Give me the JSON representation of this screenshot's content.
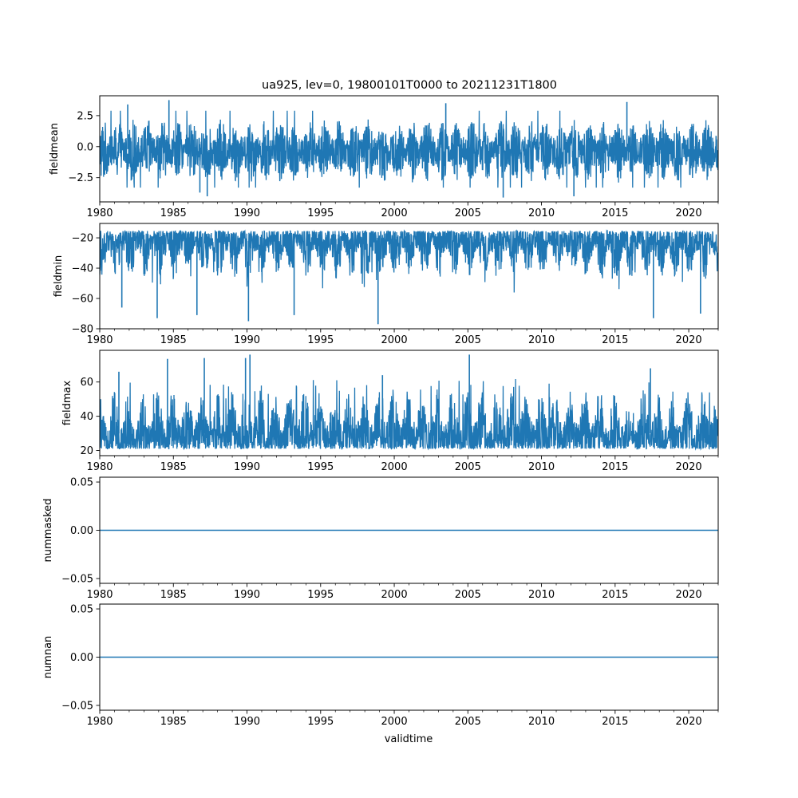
{
  "figure": {
    "title": "ua925, lev=0, 19800101T0000 to 20211231T1800",
    "xlabel": "validtime",
    "line_color": "#1f77b4"
  },
  "chart_data": [
    {
      "type": "line",
      "ylabel": "fieldmean",
      "xlim": [
        1980.0,
        2022.0
      ],
      "ylim": [
        -4.45,
        4.1
      ],
      "yticks": [
        -2.5,
        0.0,
        2.5
      ],
      "ytick_labels": [
        "−2.5",
        "0.0",
        "2.5"
      ],
      "xticks": [
        1980,
        1985,
        1990,
        1995,
        2000,
        2005,
        2010,
        2015,
        2020
      ],
      "xtick_labels": [
        "1980",
        "1985",
        "1990",
        "1995",
        "2000",
        "2005",
        "2010",
        "2015",
        "2020"
      ],
      "grid": false,
      "series": [
        {
          "x_range": [
            1980.0,
            2021.99
          ],
          "baseline": -0.2,
          "typical_low": -2.2,
          "typical_high": 1.5,
          "extremes": [
            [
              1984.7,
              3.75
            ],
            [
              1987.3,
              -4.0
            ],
            [
              2003.5,
              3.5
            ],
            [
              2007.4,
              -4.1
            ],
            [
              2012.2,
              -4.0
            ],
            [
              2015.8,
              3.6
            ],
            [
              1981.9,
              3.4
            ],
            [
              1986.8,
              -3.7
            ]
          ]
        }
      ]
    },
    {
      "type": "line",
      "ylabel": "fieldmin",
      "xlim": [
        1980.0,
        2022.0
      ],
      "ylim": [
        -80.0,
        -10.5
      ],
      "yticks": [
        -80,
        -60,
        -40,
        -20
      ],
      "ytick_labels": [
        "−80",
        "−60",
        "−40",
        "−20"
      ],
      "xticks": [
        1980,
        1985,
        1990,
        1995,
        2000,
        2005,
        2010,
        2015,
        2020
      ],
      "xtick_labels": [
        "1980",
        "1985",
        "1990",
        "1995",
        "2000",
        "2005",
        "2010",
        "2015",
        "2020"
      ],
      "grid": false,
      "series": [
        {
          "x_range": [
            1980.0,
            2021.99
          ],
          "baseline": -22.0,
          "typical_low": -42.0,
          "typical_high": -15.5,
          "extremes": [
            [
              1990.1,
              -75.0
            ],
            [
              1998.9,
              -77.0
            ],
            [
              1983.9,
              -73.0
            ],
            [
              2017.6,
              -73.0
            ],
            [
              1993.2,
              -71.0
            ],
            [
              1986.6,
              -71.0
            ],
            [
              2020.8,
              -70.0
            ],
            [
              1981.5,
              -66.0
            ]
          ]
        }
      ]
    },
    {
      "type": "line",
      "ylabel": "fieldmax",
      "xlim": [
        1980.0,
        2022.0
      ],
      "ylim": [
        17.0,
        78.5
      ],
      "yticks": [
        20,
        40,
        60
      ],
      "ytick_labels": [
        "20",
        "40",
        "60"
      ],
      "xticks": [
        1980,
        1985,
        1990,
        1995,
        2000,
        2005,
        2010,
        2015,
        2020
      ],
      "xtick_labels": [
        "1980",
        "1985",
        "1990",
        "1995",
        "2000",
        "2005",
        "2010",
        "2015",
        "2020"
      ],
      "grid": false,
      "series": [
        {
          "x_range": [
            1980.0,
            2021.99
          ],
          "baseline": 30.0,
          "typical_low": 21.0,
          "typical_high": 50.0,
          "extremes": [
            [
              1990.2,
              76.0
            ],
            [
              2005.1,
              76.0
            ],
            [
              1984.6,
              73.5
            ],
            [
              1987.1,
              74.0
            ],
            [
              1989.9,
              74.0
            ],
            [
              1999.2,
              64.0
            ],
            [
              2017.4,
              68.0
            ],
            [
              1981.3,
              66.0
            ]
          ]
        }
      ]
    },
    {
      "type": "line",
      "ylabel": "nummasked",
      "xlim": [
        1980.0,
        2022.0
      ],
      "ylim": [
        -0.055,
        0.055
      ],
      "yticks": [
        -0.05,
        0.0,
        0.05
      ],
      "ytick_labels": [
        "−0.05",
        "0.00",
        "0.05"
      ],
      "xticks": [
        1980,
        1985,
        1990,
        1995,
        2000,
        2005,
        2010,
        2015,
        2020
      ],
      "xtick_labels": [
        "1980",
        "1985",
        "1990",
        "1995",
        "2000",
        "2005",
        "2010",
        "2015",
        "2020"
      ],
      "grid": false,
      "series": [
        {
          "x": [
            1980.0,
            2022.0
          ],
          "y": [
            0.0,
            0.0
          ]
        }
      ]
    },
    {
      "type": "line",
      "ylabel": "numnan",
      "xlim": [
        1980.0,
        2022.0
      ],
      "ylim": [
        -0.055,
        0.055
      ],
      "yticks": [
        -0.05,
        0.0,
        0.05
      ],
      "ytick_labels": [
        "−0.05",
        "0.00",
        "0.05"
      ],
      "xticks": [
        1980,
        1985,
        1990,
        1995,
        2000,
        2005,
        2010,
        2015,
        2020
      ],
      "xtick_labels": [
        "1980",
        "1985",
        "1990",
        "1995",
        "2000",
        "2005",
        "2010",
        "2015",
        "2020"
      ],
      "grid": false,
      "series": [
        {
          "x": [
            1980.0,
            2022.0
          ],
          "y": [
            0.0,
            0.0
          ]
        }
      ]
    }
  ]
}
